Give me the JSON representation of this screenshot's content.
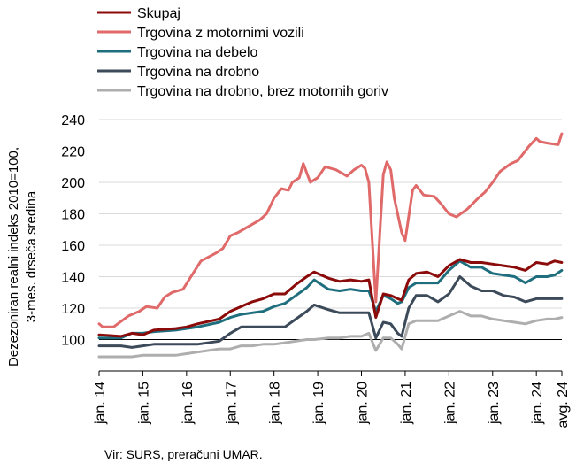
{
  "source": "Vir: SURS, preračuni UMAR.",
  "chart_data": {
    "type": "line",
    "ylabel": "Dezezoniran realni indeks 2010=100, 3-mes. drseča sredina",
    "ylim": [
      80,
      240
    ],
    "yticks": [
      100,
      120,
      140,
      160,
      180,
      200,
      220,
      240
    ],
    "xlim": [
      2014.0,
      2024.583
    ],
    "x_ticks": [
      {
        "x": 2014,
        "label": "jan. 14"
      },
      {
        "x": 2015,
        "label": "jan. 15"
      },
      {
        "x": 2016,
        "label": "jan. 16"
      },
      {
        "x": 2017,
        "label": "jan. 17"
      },
      {
        "x": 2018,
        "label": "jan. 18"
      },
      {
        "x": 2019,
        "label": "jan. 19"
      },
      {
        "x": 2020,
        "label": "jan. 20"
      },
      {
        "x": 2021,
        "label": "jan. 21"
      },
      {
        "x": 2022,
        "label": "jan. 22"
      },
      {
        "x": 2023,
        "label": "jan. 23"
      },
      {
        "x": 2024,
        "label": "jan. 24"
      },
      {
        "x": 2024.583,
        "label": "avg. 24"
      }
    ],
    "reference_line": 100,
    "legend_position": "top",
    "series": [
      {
        "name": "Skupaj",
        "color": "#8b0a0a",
        "points": [
          [
            2014,
            103
          ],
          [
            2014.5,
            102
          ],
          [
            2014.75,
            104
          ],
          [
            2015,
            103
          ],
          [
            2015.25,
            106
          ],
          [
            2015.75,
            107
          ],
          [
            2016,
            108
          ],
          [
            2016.25,
            110
          ],
          [
            2016.75,
            113
          ],
          [
            2017,
            118
          ],
          [
            2017.25,
            121
          ],
          [
            2017.5,
            124
          ],
          [
            2017.75,
            126
          ],
          [
            2018,
            129
          ],
          [
            2018.25,
            129
          ],
          [
            2018.5,
            135
          ],
          [
            2018.75,
            140
          ],
          [
            2018.92,
            143
          ],
          [
            2019.25,
            139
          ],
          [
            2019.5,
            137
          ],
          [
            2019.75,
            138
          ],
          [
            2020,
            137
          ],
          [
            2020.17,
            138
          ],
          [
            2020.33,
            114
          ],
          [
            2020.5,
            129
          ],
          [
            2020.67,
            128
          ],
          [
            2020.83,
            126
          ],
          [
            2020.92,
            125
          ],
          [
            2021.08,
            138
          ],
          [
            2021.25,
            142
          ],
          [
            2021.5,
            143
          ],
          [
            2021.75,
            140
          ],
          [
            2022,
            147
          ],
          [
            2022.25,
            151
          ],
          [
            2022.5,
            149
          ],
          [
            2022.75,
            149
          ],
          [
            2023,
            148
          ],
          [
            2023.25,
            147
          ],
          [
            2023.5,
            146
          ],
          [
            2023.75,
            144
          ],
          [
            2024,
            149
          ],
          [
            2024.25,
            148
          ],
          [
            2024.42,
            150
          ],
          [
            2024.58,
            149
          ]
        ]
      },
      {
        "name": "Trgovina z motornimi vozili",
        "color": "#e06a6a",
        "points": [
          [
            2014,
            110
          ],
          [
            2014.08,
            108
          ],
          [
            2014.33,
            108
          ],
          [
            2014.67,
            115
          ],
          [
            2014.92,
            118
          ],
          [
            2015.08,
            121
          ],
          [
            2015.33,
            120
          ],
          [
            2015.5,
            127
          ],
          [
            2015.67,
            130
          ],
          [
            2015.92,
            132
          ],
          [
            2016.17,
            143
          ],
          [
            2016.33,
            150
          ],
          [
            2016.67,
            155
          ],
          [
            2016.83,
            158
          ],
          [
            2017,
            166
          ],
          [
            2017.17,
            168
          ],
          [
            2017.42,
            172
          ],
          [
            2017.67,
            176
          ],
          [
            2017.83,
            180
          ],
          [
            2018,
            190
          ],
          [
            2018.17,
            196
          ],
          [
            2018.33,
            195
          ],
          [
            2018.42,
            200
          ],
          [
            2018.58,
            203
          ],
          [
            2018.67,
            212
          ],
          [
            2018.83,
            200
          ],
          [
            2019,
            203
          ],
          [
            2019.17,
            210
          ],
          [
            2019.42,
            208
          ],
          [
            2019.67,
            204
          ],
          [
            2019.83,
            208
          ],
          [
            2020,
            211
          ],
          [
            2020.08,
            209
          ],
          [
            2020.17,
            200
          ],
          [
            2020.33,
            124
          ],
          [
            2020.5,
            205
          ],
          [
            2020.58,
            213
          ],
          [
            2020.67,
            208
          ],
          [
            2020.75,
            190
          ],
          [
            2020.92,
            168
          ],
          [
            2021,
            163
          ],
          [
            2021.17,
            195
          ],
          [
            2021.25,
            198
          ],
          [
            2021.42,
            192
          ],
          [
            2021.67,
            191
          ],
          [
            2021.83,
            186
          ],
          [
            2022,
            180
          ],
          [
            2022.17,
            178
          ],
          [
            2022.42,
            183
          ],
          [
            2022.67,
            190
          ],
          [
            2022.83,
            194
          ],
          [
            2023,
            200
          ],
          [
            2023.17,
            207
          ],
          [
            2023.42,
            212
          ],
          [
            2023.58,
            214
          ],
          [
            2023.83,
            223
          ],
          [
            2024,
            228
          ],
          [
            2024.08,
            226
          ],
          [
            2024.25,
            225
          ],
          [
            2024.5,
            224
          ],
          [
            2024.58,
            231
          ]
        ]
      },
      {
        "name": "Trgovina na debelo",
        "color": "#1f6e7e",
        "points": [
          [
            2014,
            101
          ],
          [
            2014.5,
            101
          ],
          [
            2014.75,
            104
          ],
          [
            2015,
            104
          ],
          [
            2015.25,
            105
          ],
          [
            2015.75,
            106
          ],
          [
            2016,
            107
          ],
          [
            2016.25,
            108
          ],
          [
            2016.75,
            111
          ],
          [
            2017,
            114
          ],
          [
            2017.25,
            116
          ],
          [
            2017.5,
            117
          ],
          [
            2017.75,
            118
          ],
          [
            2018,
            121
          ],
          [
            2018.25,
            123
          ],
          [
            2018.5,
            128
          ],
          [
            2018.75,
            133
          ],
          [
            2018.92,
            138
          ],
          [
            2019.25,
            132
          ],
          [
            2019.5,
            131
          ],
          [
            2019.75,
            132
          ],
          [
            2020,
            131
          ],
          [
            2020.17,
            131
          ],
          [
            2020.33,
            118
          ],
          [
            2020.5,
            128
          ],
          [
            2020.67,
            126
          ],
          [
            2020.83,
            123
          ],
          [
            2020.92,
            124
          ],
          [
            2021.08,
            133
          ],
          [
            2021.25,
            136
          ],
          [
            2021.5,
            136
          ],
          [
            2021.75,
            136
          ],
          [
            2022,
            144
          ],
          [
            2022.25,
            150
          ],
          [
            2022.5,
            146
          ],
          [
            2022.75,
            146
          ],
          [
            2023,
            142
          ],
          [
            2023.25,
            141
          ],
          [
            2023.5,
            140
          ],
          [
            2023.75,
            136
          ],
          [
            2024,
            140
          ],
          [
            2024.25,
            140
          ],
          [
            2024.42,
            141
          ],
          [
            2024.58,
            144
          ]
        ]
      },
      {
        "name": "Trgovina na drobno",
        "color": "#3c4a5a",
        "points": [
          [
            2014,
            96
          ],
          [
            2014.5,
            96
          ],
          [
            2014.75,
            95
          ],
          [
            2015,
            96
          ],
          [
            2015.25,
            97
          ],
          [
            2015.75,
            97
          ],
          [
            2016,
            97
          ],
          [
            2016.25,
            97
          ],
          [
            2016.75,
            99
          ],
          [
            2017,
            104
          ],
          [
            2017.25,
            108
          ],
          [
            2017.5,
            108
          ],
          [
            2017.75,
            108
          ],
          [
            2018,
            108
          ],
          [
            2018.25,
            108
          ],
          [
            2018.5,
            113
          ],
          [
            2018.75,
            118
          ],
          [
            2018.92,
            122
          ],
          [
            2019.25,
            119
          ],
          [
            2019.5,
            117
          ],
          [
            2019.75,
            117
          ],
          [
            2020,
            117
          ],
          [
            2020.17,
            117
          ],
          [
            2020.33,
            101
          ],
          [
            2020.5,
            111
          ],
          [
            2020.67,
            110
          ],
          [
            2020.83,
            104
          ],
          [
            2020.92,
            102
          ],
          [
            2021.08,
            120
          ],
          [
            2021.25,
            128
          ],
          [
            2021.5,
            128
          ],
          [
            2021.75,
            124
          ],
          [
            2022,
            129
          ],
          [
            2022.25,
            140
          ],
          [
            2022.5,
            134
          ],
          [
            2022.75,
            131
          ],
          [
            2023,
            131
          ],
          [
            2023.25,
            128
          ],
          [
            2023.5,
            127
          ],
          [
            2023.75,
            124
          ],
          [
            2024,
            126
          ],
          [
            2024.25,
            126
          ],
          [
            2024.42,
            126
          ],
          [
            2024.58,
            126
          ]
        ]
      },
      {
        "name": "Trgovina na drobno, brez motornih goriv",
        "color": "#aeaeae",
        "points": [
          [
            2014,
            89
          ],
          [
            2014.5,
            89
          ],
          [
            2014.75,
            89
          ],
          [
            2015,
            90
          ],
          [
            2015.25,
            90
          ],
          [
            2015.75,
            90
          ],
          [
            2016,
            91
          ],
          [
            2016.25,
            92
          ],
          [
            2016.75,
            94
          ],
          [
            2017,
            94
          ],
          [
            2017.25,
            96
          ],
          [
            2017.5,
            96
          ],
          [
            2017.75,
            97
          ],
          [
            2018,
            97
          ],
          [
            2018.25,
            98
          ],
          [
            2018.5,
            99
          ],
          [
            2018.75,
            100
          ],
          [
            2018.92,
            100
          ],
          [
            2019.25,
            101
          ],
          [
            2019.5,
            101
          ],
          [
            2019.75,
            102
          ],
          [
            2020,
            102
          ],
          [
            2020.17,
            104
          ],
          [
            2020.33,
            93
          ],
          [
            2020.5,
            101
          ],
          [
            2020.67,
            101
          ],
          [
            2020.83,
            97
          ],
          [
            2020.92,
            94
          ],
          [
            2021.08,
            110
          ],
          [
            2021.25,
            112
          ],
          [
            2021.5,
            112
          ],
          [
            2021.75,
            112
          ],
          [
            2022,
            115
          ],
          [
            2022.25,
            118
          ],
          [
            2022.5,
            115
          ],
          [
            2022.75,
            115
          ],
          [
            2023,
            113
          ],
          [
            2023.25,
            112
          ],
          [
            2023.5,
            111
          ],
          [
            2023.75,
            110
          ],
          [
            2024,
            112
          ],
          [
            2024.25,
            113
          ],
          [
            2024.42,
            113
          ],
          [
            2024.58,
            114
          ]
        ]
      }
    ]
  }
}
